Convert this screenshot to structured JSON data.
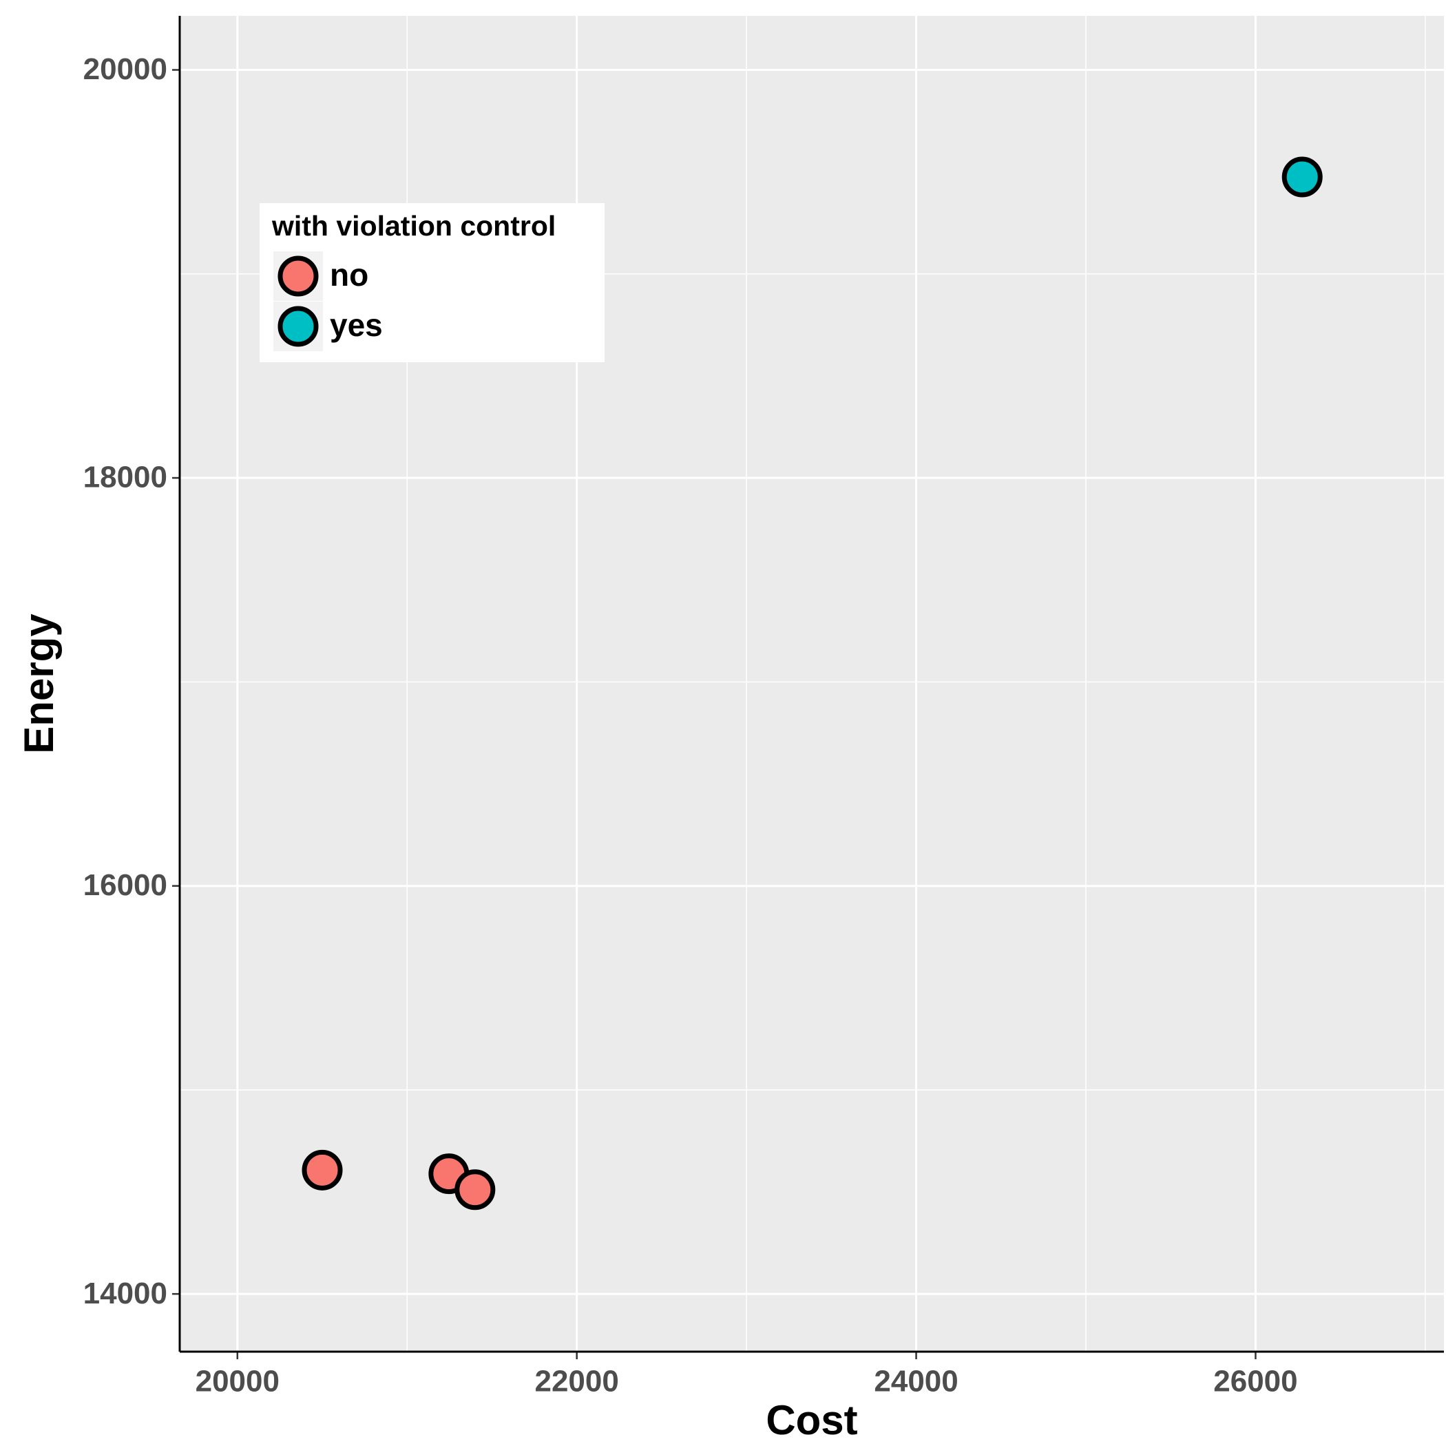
{
  "chart_data": {
    "type": "scatter",
    "x_label": "Cost",
    "y_label": "Energy",
    "legend_title": "with violation control",
    "legend_position": "top-left",
    "grid": true,
    "xlim": [
      19660,
      27110
    ],
    "ylim": [
      13717,
      20265
    ],
    "xticks": [
      20000,
      22000,
      24000,
      26000
    ],
    "yticks": [
      14000,
      16000,
      18000,
      20000
    ],
    "x_minor_ticks": [
      21000,
      23000,
      25000,
      27000
    ],
    "y_minor_ticks": [
      15000,
      17000,
      19000
    ],
    "series": [
      {
        "name": "no",
        "color": "#F8766D",
        "x": [
          20500,
          21246,
          21400
        ],
        "values": [
          14607,
          14589,
          14511
        ]
      },
      {
        "name": "yes",
        "color": "#00BFC4",
        "x": [
          26275
        ],
        "values": [
          19475
        ]
      }
    ]
  }
}
